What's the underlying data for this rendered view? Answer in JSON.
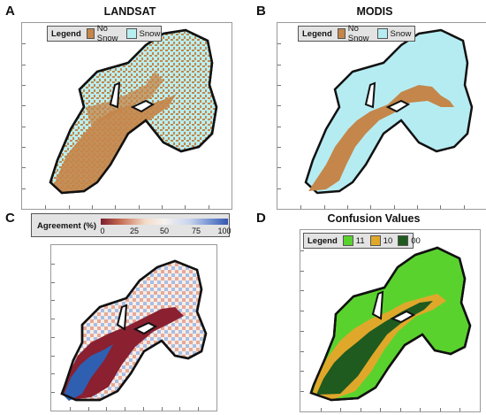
{
  "panels": [
    {
      "letter": "A",
      "title": "LANDSAT",
      "legend": {
        "title": "Legend",
        "entries": [
          {
            "label": "No Snow",
            "color": "#c4864a"
          },
          {
            "label": "Snow",
            "color": "#b9eef0"
          }
        ]
      }
    },
    {
      "letter": "B",
      "title": "MODIS",
      "legend": {
        "title": "Legend",
        "entries": [
          {
            "label": "No Snow",
            "color": "#c4864a"
          },
          {
            "label": "Snow",
            "color": "#b9eef0"
          }
        ]
      }
    },
    {
      "letter": "C",
      "title": "",
      "gradient": {
        "label": "Agreement (%)",
        "ticks": [
          "0",
          "25",
          "50",
          "75",
          "100"
        ]
      }
    },
    {
      "letter": "D",
      "title": "Confusion Values",
      "legend": {
        "title": "Legend",
        "entries": [
          {
            "label": "11",
            "color": "#5ad22e"
          },
          {
            "label": "10",
            "color": "#e0a82a"
          },
          {
            "label": "00",
            "color": "#1f5a1f"
          }
        ]
      }
    }
  ],
  "colors": {
    "snow": "#b9eef0",
    "nosnow": "#c4864a",
    "modis_snow": "#b5ecf2",
    "agree_low": "#2f5fb0",
    "agree_mid": "#f6eee6",
    "agree_red": "#8a2030",
    "c11": "#5ad22e",
    "c10": "#e0a82a",
    "c00": "#1f5a1f"
  }
}
